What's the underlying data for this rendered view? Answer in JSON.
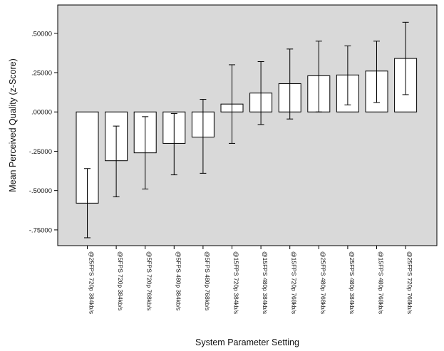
{
  "chart_data": {
    "type": "bar",
    "title": "",
    "xlabel": "System Parameter Setting",
    "ylabel": "Mean Perceived Quality (z-Score)",
    "ylim": [
      -0.85,
      0.68
    ],
    "yticks": [
      -0.75,
      -0.5,
      -0.25,
      0.0,
      0.25,
      0.5
    ],
    "ytick_labels": [
      "-.75000",
      "-.50000",
      "-.25000",
      ".00000",
      ".25000",
      ".50000"
    ],
    "grid": false,
    "plot_background": "#d9d9d9",
    "bar_fill": "#ffffff",
    "categories": [
      "@25FPS 720p 384kb/s",
      "@5FPS 720p 384kb/s",
      "@5FPS 720p 768kb/s",
      "@5FPS 480p 384kb/s",
      "@5FPS 480p 768kb/s",
      "@15FPS 720p 384kb/s",
      "@15FPS 480p 384kb/s",
      "@15FPS 720p 768kb/s",
      "@25FPS 480p 768kb/s",
      "@25FPS 480p 384kb/s",
      "@15FPS 480p 768kb/s",
      "@25FPS 720p 768kb/s"
    ],
    "values": [
      -0.58,
      -0.31,
      -0.26,
      -0.2,
      -0.16,
      0.05,
      0.12,
      0.18,
      0.23,
      0.235,
      0.26,
      0.34
    ],
    "error_low": [
      -0.8,
      -0.54,
      -0.49,
      -0.4,
      -0.39,
      -0.2,
      -0.08,
      -0.045,
      0.0,
      0.045,
      0.06,
      0.11
    ],
    "error_high": [
      -0.36,
      -0.09,
      -0.03,
      -0.01,
      0.08,
      0.3,
      0.32,
      0.4,
      0.45,
      0.42,
      0.45,
      0.57
    ]
  }
}
